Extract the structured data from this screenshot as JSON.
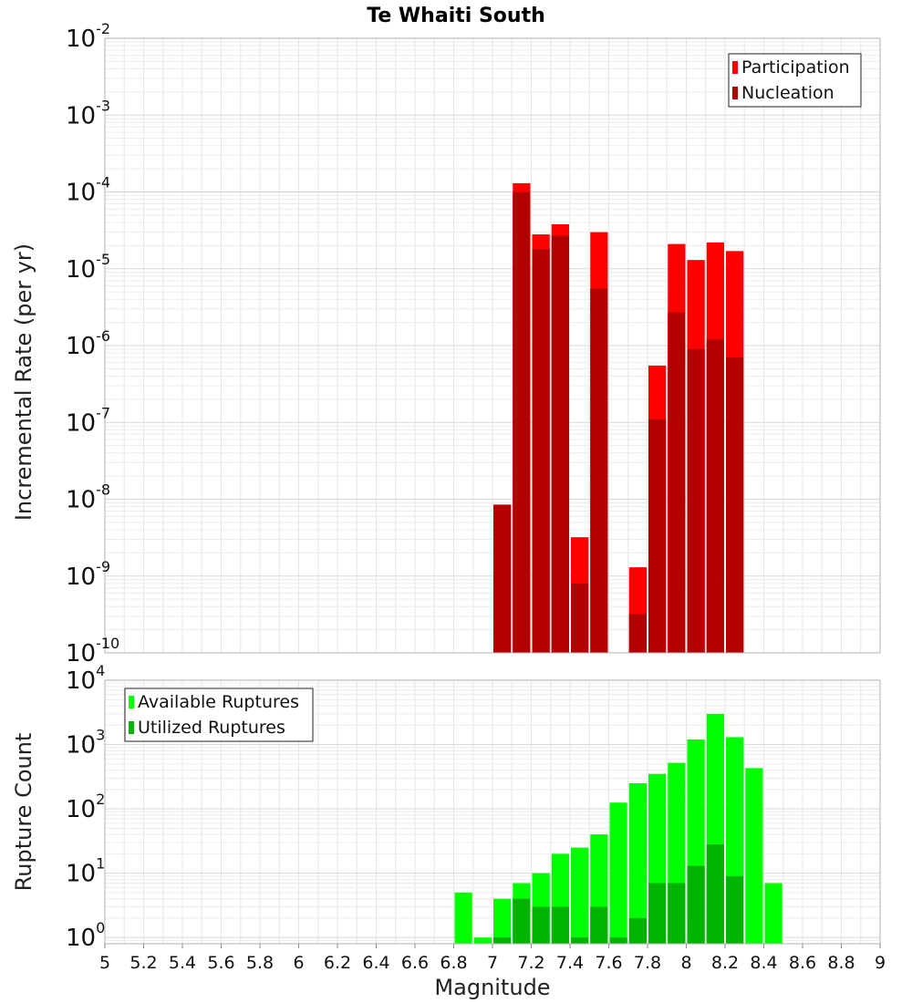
{
  "chart_data": [
    {
      "type": "bar",
      "title": "Te Whaiti South",
      "xlabel": "",
      "ylabel": "Incremental Rate (per yr)",
      "y_scale": "log",
      "ylim": [
        1e-10,
        0.01
      ],
      "xlim": [
        5,
        9
      ],
      "grid": true,
      "legend_position": "top-right",
      "y_ticks": [
        {
          "base": "10",
          "exp": "-10",
          "value": 1e-10
        },
        {
          "base": "10",
          "exp": "-9",
          "value": 1e-09
        },
        {
          "base": "10",
          "exp": "-8",
          "value": 1e-08
        },
        {
          "base": "10",
          "exp": "-7",
          "value": 1e-07
        },
        {
          "base": "10",
          "exp": "-6",
          "value": 1e-06
        },
        {
          "base": "10",
          "exp": "-5",
          "value": 1e-05
        },
        {
          "base": "10",
          "exp": "-4",
          "value": 0.0001
        },
        {
          "base": "10",
          "exp": "-3",
          "value": 0.001
        },
        {
          "base": "10",
          "exp": "-2",
          "value": 0.01
        }
      ],
      "series": [
        {
          "name": "Participation",
          "color": "#ff0000",
          "x": [
            7.05,
            7.15,
            7.25,
            7.35,
            7.45,
            7.55,
            7.75,
            7.85,
            7.95,
            8.05,
            8.15,
            8.25
          ],
          "values": [
            8.5e-09,
            0.00013,
            2.8e-05,
            3.8e-05,
            3.2e-09,
            3e-05,
            1.3e-09,
            5.5e-07,
            2.1e-05,
            1.3e-05,
            2.2e-05,
            1.7e-05
          ]
        },
        {
          "name": "Nucleation",
          "color": "#b30000",
          "x": [
            7.05,
            7.15,
            7.25,
            7.35,
            7.45,
            7.55,
            7.75,
            7.85,
            7.95,
            8.05,
            8.15,
            8.25
          ],
          "values": [
            8.5e-09,
            0.0001,
            1.8e-05,
            2.7e-05,
            8e-10,
            5.5e-06,
            3.2e-10,
            1.1e-07,
            2.7e-06,
            9e-07,
            1.2e-06,
            7e-07
          ]
        }
      ]
    },
    {
      "type": "bar",
      "title": "",
      "xlabel": "Magnitude",
      "ylabel": "Rupture Count",
      "y_scale": "log",
      "ylim": [
        0.8,
        10000
      ],
      "xlim": [
        5,
        9
      ],
      "grid": true,
      "legend_position": "top-left",
      "x_ticks": [
        "5",
        "5.2",
        "5.4",
        "5.6",
        "5.8",
        "6",
        "6.2",
        "6.4",
        "6.6",
        "6.8",
        "7",
        "7.2",
        "7.4",
        "7.6",
        "7.8",
        "8",
        "8.2",
        "8.4",
        "8.6",
        "8.8",
        "9"
      ],
      "y_ticks": [
        {
          "base": "10",
          "exp": "0",
          "value": 1
        },
        {
          "base": "10",
          "exp": "1",
          "value": 10
        },
        {
          "base": "10",
          "exp": "2",
          "value": 100
        },
        {
          "base": "10",
          "exp": "3",
          "value": 1000
        },
        {
          "base": "10",
          "exp": "4",
          "value": 10000
        }
      ],
      "series": [
        {
          "name": "Available Ruptures",
          "color": "#00ff00",
          "x": [
            6.85,
            6.95,
            7.05,
            7.15,
            7.25,
            7.35,
            7.45,
            7.55,
            7.65,
            7.75,
            7.85,
            7.95,
            8.05,
            8.15,
            8.25,
            8.35,
            8.45
          ],
          "values": [
            5,
            1,
            4,
            7,
            10,
            20,
            25,
            40,
            125,
            250,
            350,
            520,
            1200,
            3000,
            1300,
            430,
            7
          ]
        },
        {
          "name": "Utilized Ruptures",
          "color": "#00b300",
          "x": [
            7.05,
            7.15,
            7.25,
            7.35,
            7.45,
            7.55,
            7.65,
            7.75,
            7.85,
            7.95,
            8.05,
            8.15,
            8.25
          ],
          "values": [
            1,
            4,
            3,
            3,
            1,
            3,
            1,
            2,
            7,
            7,
            13,
            28,
            9
          ]
        }
      ]
    }
  ]
}
